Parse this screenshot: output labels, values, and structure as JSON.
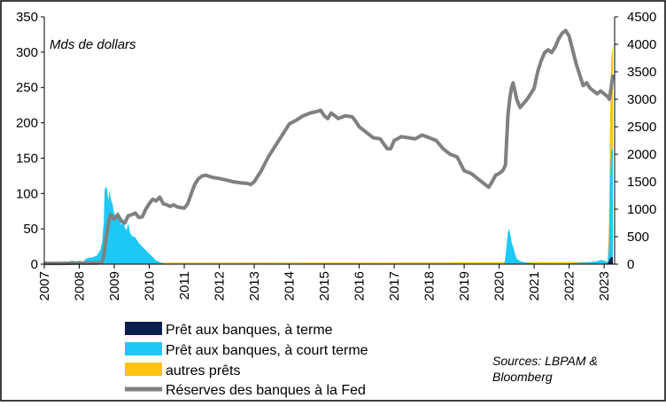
{
  "chart_data": {
    "type": "area",
    "unit_label": "Mds de dollars",
    "source": [
      "Sources: LBPAM &",
      "Bloomberg"
    ],
    "x_ticks": [
      "2007",
      "2008",
      "2009",
      "2010",
      "2011",
      "2012",
      "2013",
      "2014",
      "2015",
      "2016",
      "2017",
      "2018",
      "2019",
      "2020",
      "2021",
      "2022",
      "2023"
    ],
    "x_range": [
      2007,
      2023.3
    ],
    "y_left": {
      "range": [
        0,
        350
      ],
      "ticks": [
        "0",
        "50",
        "100",
        "150",
        "200",
        "250",
        "300",
        "350"
      ]
    },
    "y_right": {
      "range": [
        0,
        4500
      ],
      "ticks": [
        "0",
        "500",
        "1000",
        "1500",
        "2000",
        "2500",
        "3000",
        "3500",
        "4000",
        "4500"
      ]
    },
    "grid": false,
    "legend_position": "bottom",
    "series": [
      {
        "name": "Prêt aux banques, à terme",
        "axis": "left",
        "kind": "area",
        "color": "#0b1f4d",
        "points": [
          [
            2007,
            0
          ],
          [
            2023.05,
            0
          ],
          [
            2023.12,
            2
          ],
          [
            2023.16,
            8
          ],
          [
            2023.2,
            10
          ],
          [
            2023.25,
            10
          ]
        ]
      },
      {
        "name": "Prêt aux banques, à court terme",
        "axis": "left",
        "kind": "area",
        "color": "#1ec8f5",
        "points": [
          [
            2007,
            2
          ],
          [
            2007.6,
            2
          ],
          [
            2007.8,
            5
          ],
          [
            2007.9,
            3
          ],
          [
            2008.0,
            5
          ],
          [
            2008.1,
            3
          ],
          [
            2008.2,
            8
          ],
          [
            2008.4,
            10
          ],
          [
            2008.5,
            12
          ],
          [
            2008.6,
            20
          ],
          [
            2008.65,
            30
          ],
          [
            2008.7,
            60
          ],
          [
            2008.72,
            102
          ],
          [
            2008.75,
            110
          ],
          [
            2008.8,
            106
          ],
          [
            2008.83,
            90
          ],
          [
            2008.86,
            104
          ],
          [
            2008.9,
            93
          ],
          [
            2008.95,
            85
          ],
          [
            2009.0,
            72
          ],
          [
            2009.05,
            68
          ],
          [
            2009.1,
            75
          ],
          [
            2009.15,
            62
          ],
          [
            2009.2,
            55
          ],
          [
            2009.25,
            66
          ],
          [
            2009.3,
            52
          ],
          [
            2009.35,
            48
          ],
          [
            2009.4,
            58
          ],
          [
            2009.45,
            45
          ],
          [
            2009.5,
            40
          ],
          [
            2009.6,
            38
          ],
          [
            2009.7,
            30
          ],
          [
            2009.8,
            25
          ],
          [
            2009.9,
            20
          ],
          [
            2010.0,
            15
          ],
          [
            2010.1,
            10
          ],
          [
            2010.2,
            5
          ],
          [
            2010.3,
            3
          ],
          [
            2010.4,
            1
          ],
          [
            2010.6,
            0
          ],
          [
            2020.15,
            0
          ],
          [
            2020.2,
            20
          ],
          [
            2020.25,
            45
          ],
          [
            2020.28,
            50
          ],
          [
            2020.32,
            42
          ],
          [
            2020.36,
            30
          ],
          [
            2020.4,
            25
          ],
          [
            2020.45,
            15
          ],
          [
            2020.5,
            8
          ],
          [
            2020.6,
            4
          ],
          [
            2020.8,
            2
          ],
          [
            2021.0,
            1
          ],
          [
            2021.2,
            0
          ],
          [
            2021.8,
            0
          ],
          [
            2022.0,
            1
          ],
          [
            2022.3,
            2
          ],
          [
            2022.6,
            3
          ],
          [
            2022.8,
            4
          ],
          [
            2022.9,
            6
          ],
          [
            2023.0,
            5
          ],
          [
            2023.05,
            4
          ],
          [
            2023.1,
            3
          ],
          [
            2023.14,
            30
          ],
          [
            2023.17,
            120
          ],
          [
            2023.2,
            160
          ],
          [
            2023.25,
            165
          ]
        ]
      },
      {
        "name": "autres prêts",
        "axis": "left",
        "kind": "area",
        "color": "#ffc20e",
        "points": [
          [
            2007,
            2
          ],
          [
            2023.1,
            3
          ],
          [
            2023.14,
            60
          ],
          [
            2023.17,
            200
          ],
          [
            2023.2,
            290
          ],
          [
            2023.25,
            310
          ]
        ]
      },
      {
        "name": "Réserves des banques à la Fed",
        "axis": "right",
        "kind": "line",
        "color": "#808080",
        "points": [
          [
            2007,
            15
          ],
          [
            2007.5,
            15
          ],
          [
            2008.0,
            20
          ],
          [
            2008.5,
            20
          ],
          [
            2008.65,
            30
          ],
          [
            2008.7,
            150
          ],
          [
            2008.75,
            400
          ],
          [
            2008.8,
            600
          ],
          [
            2008.85,
            800
          ],
          [
            2008.9,
            900
          ],
          [
            2008.95,
            850
          ],
          [
            2009.0,
            820
          ],
          [
            2009.1,
            900
          ],
          [
            2009.2,
            780
          ],
          [
            2009.3,
            750
          ],
          [
            2009.4,
            880
          ],
          [
            2009.5,
            900
          ],
          [
            2009.6,
            930
          ],
          [
            2009.7,
            850
          ],
          [
            2009.8,
            860
          ],
          [
            2009.9,
            1000
          ],
          [
            2010.0,
            1100
          ],
          [
            2010.1,
            1180
          ],
          [
            2010.2,
            1150
          ],
          [
            2010.3,
            1220
          ],
          [
            2010.4,
            1100
          ],
          [
            2010.5,
            1080
          ],
          [
            2010.6,
            1050
          ],
          [
            2010.7,
            1080
          ],
          [
            2010.8,
            1040
          ],
          [
            2010.9,
            1030
          ],
          [
            2011.0,
            1020
          ],
          [
            2011.1,
            1100
          ],
          [
            2011.2,
            1280
          ],
          [
            2011.3,
            1450
          ],
          [
            2011.4,
            1550
          ],
          [
            2011.5,
            1600
          ],
          [
            2011.6,
            1620
          ],
          [
            2011.7,
            1600
          ],
          [
            2011.8,
            1580
          ],
          [
            2011.9,
            1570
          ],
          [
            2012.0,
            1560
          ],
          [
            2012.2,
            1530
          ],
          [
            2012.4,
            1500
          ],
          [
            2012.6,
            1480
          ],
          [
            2012.8,
            1470
          ],
          [
            2012.9,
            1450
          ],
          [
            2013.0,
            1500
          ],
          [
            2013.2,
            1700
          ],
          [
            2013.4,
            1950
          ],
          [
            2013.6,
            2150
          ],
          [
            2013.8,
            2350
          ],
          [
            2014.0,
            2550
          ],
          [
            2014.2,
            2620
          ],
          [
            2014.4,
            2700
          ],
          [
            2014.6,
            2750
          ],
          [
            2014.8,
            2780
          ],
          [
            2014.9,
            2800
          ],
          [
            2015.0,
            2700
          ],
          [
            2015.1,
            2650
          ],
          [
            2015.2,
            2750
          ],
          [
            2015.4,
            2650
          ],
          [
            2015.6,
            2700
          ],
          [
            2015.8,
            2680
          ],
          [
            2015.9,
            2600
          ],
          [
            2016.0,
            2500
          ],
          [
            2016.2,
            2400
          ],
          [
            2016.4,
            2300
          ],
          [
            2016.6,
            2280
          ],
          [
            2016.8,
            2100
          ],
          [
            2016.9,
            2100
          ],
          [
            2017.0,
            2250
          ],
          [
            2017.2,
            2320
          ],
          [
            2017.4,
            2300
          ],
          [
            2017.6,
            2280
          ],
          [
            2017.8,
            2350
          ],
          [
            2018.0,
            2300
          ],
          [
            2018.2,
            2250
          ],
          [
            2018.4,
            2100
          ],
          [
            2018.6,
            2000
          ],
          [
            2018.8,
            1950
          ],
          [
            2019.0,
            1700
          ],
          [
            2019.2,
            1650
          ],
          [
            2019.4,
            1550
          ],
          [
            2019.6,
            1450
          ],
          [
            2019.7,
            1400
          ],
          [
            2019.8,
            1500
          ],
          [
            2019.9,
            1620
          ],
          [
            2020.0,
            1650
          ],
          [
            2020.1,
            1700
          ],
          [
            2020.18,
            1800
          ],
          [
            2020.25,
            2700
          ],
          [
            2020.3,
            3000
          ],
          [
            2020.35,
            3200
          ],
          [
            2020.4,
            3300
          ],
          [
            2020.5,
            3000
          ],
          [
            2020.6,
            2850
          ],
          [
            2020.8,
            3000
          ],
          [
            2020.9,
            3100
          ],
          [
            2021.0,
            3200
          ],
          [
            2021.1,
            3500
          ],
          [
            2021.2,
            3700
          ],
          [
            2021.3,
            3850
          ],
          [
            2021.4,
            3900
          ],
          [
            2021.5,
            3850
          ],
          [
            2021.6,
            3950
          ],
          [
            2021.7,
            4100
          ],
          [
            2021.8,
            4200
          ],
          [
            2021.9,
            4250
          ],
          [
            2022.0,
            4150
          ],
          [
            2022.1,
            3900
          ],
          [
            2022.2,
            3650
          ],
          [
            2022.3,
            3450
          ],
          [
            2022.4,
            3250
          ],
          [
            2022.5,
            3300
          ],
          [
            2022.6,
            3200
          ],
          [
            2022.7,
            3150
          ],
          [
            2022.8,
            3100
          ],
          [
            2022.9,
            3150
          ],
          [
            2023.0,
            3100
          ],
          [
            2023.1,
            3050
          ],
          [
            2023.15,
            3000
          ],
          [
            2023.2,
            3200
          ],
          [
            2023.25,
            3450
          ]
        ]
      }
    ]
  }
}
